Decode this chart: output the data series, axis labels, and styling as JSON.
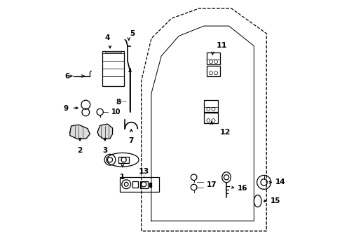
{
  "bg_color": "#ffffff",
  "line_color": "#000000",
  "fig_width": 4.89,
  "fig_height": 3.6,
  "dpi": 100,
  "door_outer": {
    "x": [
      0.38,
      0.38,
      0.42,
      0.5,
      0.6,
      0.72,
      0.88,
      0.88,
      0.38
    ],
    "y": [
      0.08,
      0.7,
      0.86,
      0.94,
      0.97,
      0.97,
      0.88,
      0.08,
      0.08
    ]
  },
  "door_inner": {
    "x": [
      0.44,
      0.44,
      0.47,
      0.54,
      0.62,
      0.73,
      0.84,
      0.84,
      0.44
    ],
    "y": [
      0.1,
      0.66,
      0.8,
      0.88,
      0.91,
      0.91,
      0.84,
      0.1,
      0.1
    ]
  }
}
